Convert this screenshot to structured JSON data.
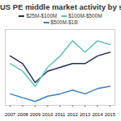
{
  "chart_data": {
    "type": "line",
    "title": "US PE middle market activity by segment",
    "x": [
      2007,
      2008,
      2009,
      2010,
      2011,
      2012,
      2013,
      2014,
      2015
    ],
    "series": [
      {
        "name": "$25M-$100M",
        "color": "#1f2f5c",
        "values": [
          65,
          55,
          30,
          45,
          50,
          55,
          55,
          65,
          70
        ]
      },
      {
        "name": "$100M-$500M",
        "color": "#5cc6b8",
        "values": [
          55,
          45,
          25,
          50,
          65,
          85,
          70,
          85,
          80
        ]
      },
      {
        "name": "$500M-$1B",
        "color": "#3b7fc4",
        "values": [
          15,
          10,
          5,
          12,
          15,
          20,
          15,
          22,
          25
        ]
      }
    ],
    "xlim": [
      2006.6,
      2015.4
    ],
    "xticks": [
      2007,
      2008,
      2009,
      2010,
      2011,
      2012,
      2013,
      2014,
      2015
    ],
    "ylim": [
      0,
      100
    ],
    "grid": false,
    "legend": "top",
    "tick_labels": "x"
  }
}
